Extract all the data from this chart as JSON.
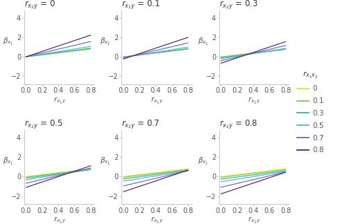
{
  "rx2y_values": [
    0,
    0.1,
    0.3,
    0.5,
    0.7,
    0.8
  ],
  "rx1x2_values": [
    0,
    0.1,
    0.3,
    0.5,
    0.7,
    0.8
  ],
  "rx1y_range": [
    0.0,
    0.8
  ],
  "ylim": [
    -2.8,
    4.8
  ],
  "yticks": [
    -2,
    0,
    2,
    4
  ],
  "xticks": [
    0.0,
    0.2,
    0.4,
    0.6,
    0.8
  ],
  "line_colors": [
    "#ede01a",
    "#7ecf44",
    "#2ab99b",
    "#5bafd6",
    "#5b6dc8",
    "#5b1a6e"
  ],
  "background_color": "#ffffff",
  "panel_bg": "#ffffff",
  "title_fontsize": 8.5,
  "label_fontsize": 7.5,
  "tick_fontsize": 7,
  "legend_title": "r_{x_1x_2}",
  "legend_values": [
    "0",
    "0.1",
    "0.3",
    "0.5",
    "0.7",
    "0.8"
  ]
}
